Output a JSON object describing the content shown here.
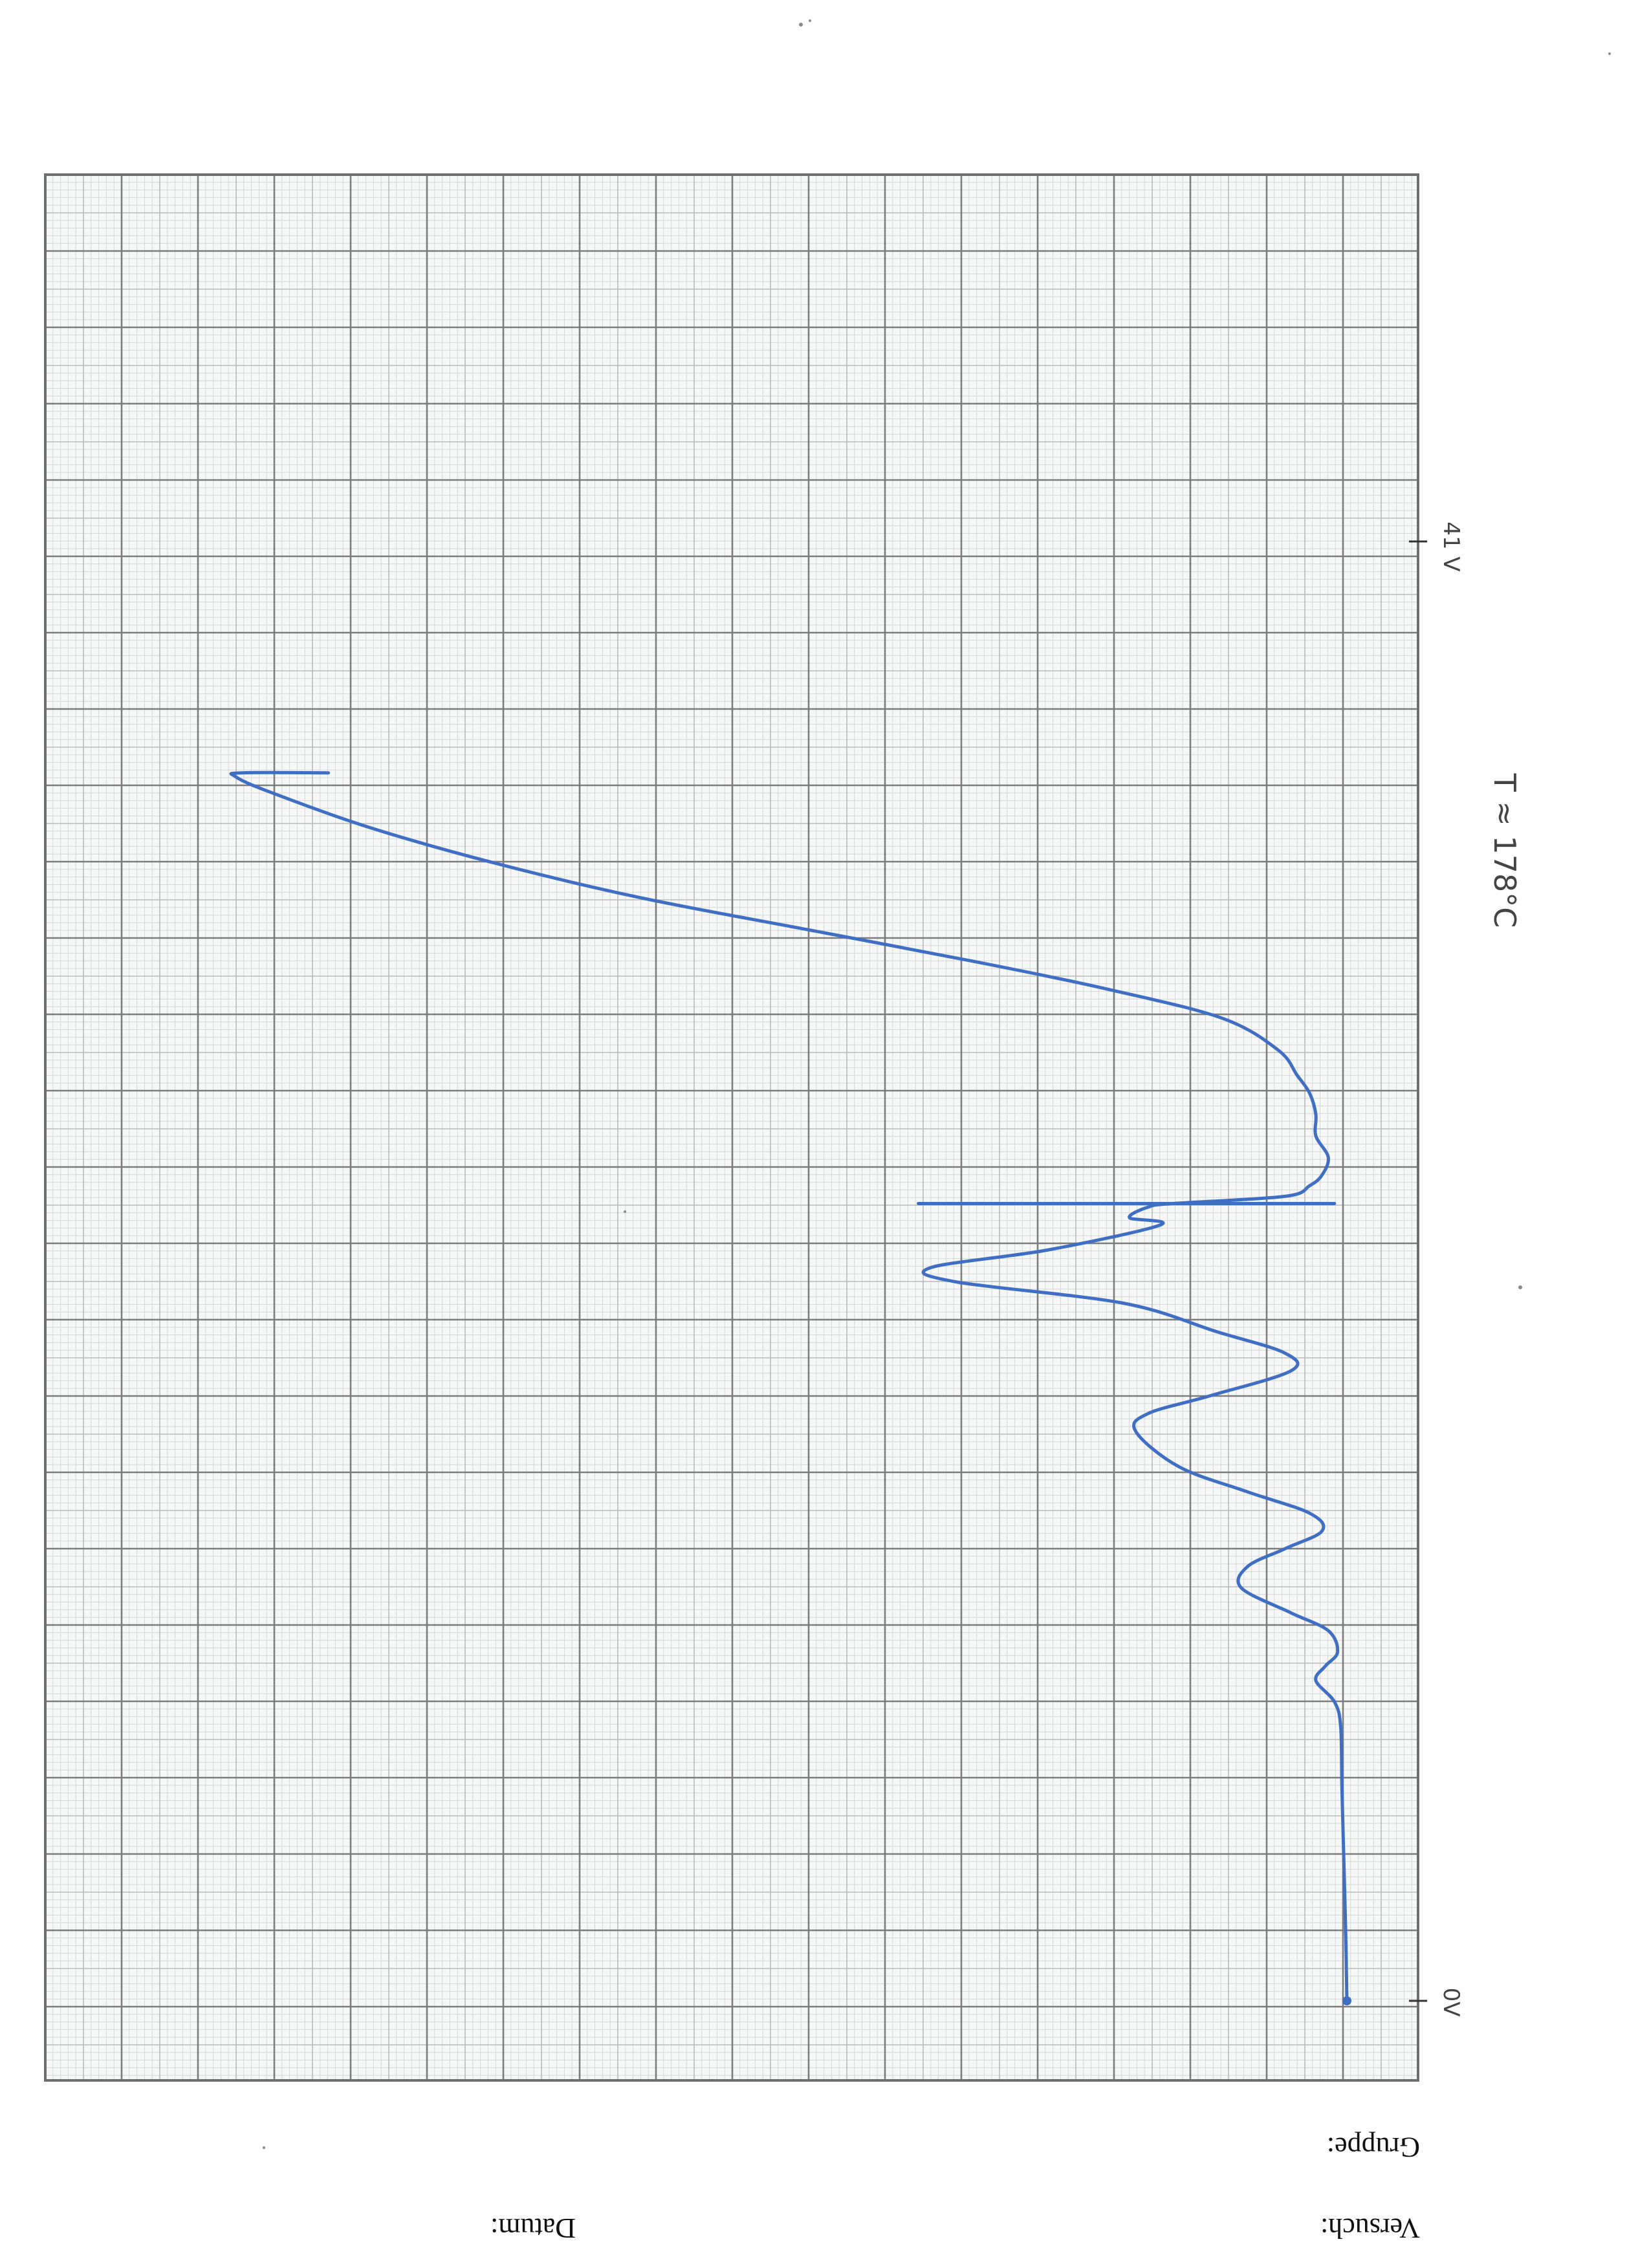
{
  "form": {
    "versuch_label": "Versuch:",
    "gruppe_label": "Gruppe:",
    "datum_label": "Datum:"
  },
  "annotations": {
    "temperature_note": "T ≈ 178°C",
    "end_voltage_label": "41 V",
    "zero_label": "0V"
  },
  "colors": {
    "ink": "#3f6fc4",
    "grid_major": "#7d7d7d",
    "grid_minor": "#b9b9b9",
    "grid_fine": "#d6d6d6",
    "paper": "#ffffff"
  },
  "chart_data": {
    "type": "line",
    "title": "",
    "xlabel": "",
    "ylabel": "",
    "x_range": [
      0,
      41
    ],
    "x_unit": "V",
    "y_range": [
      0,
      18
    ],
    "grid": true,
    "orientation": "page rotated 180°; x runs bottom-to-top, y runs right-to-left",
    "x_tick_labels": [
      "0V",
      "41 V"
    ],
    "series": [
      {
        "values": [
          [
            0.0,
            0.0
          ],
          [
            2.0,
            0.02
          ],
          [
            4.0,
            0.05
          ],
          [
            6.0,
            0.08
          ],
          [
            7.7,
            0.1
          ],
          [
            8.4,
            0.2
          ],
          [
            9.0,
            0.5
          ],
          [
            9.4,
            0.35
          ],
          [
            9.8,
            0.15
          ],
          [
            10.4,
            0.3
          ],
          [
            10.9,
            0.9
          ],
          [
            11.6,
            1.7
          ],
          [
            12.2,
            1.6
          ],
          [
            12.7,
            1.0
          ],
          [
            13.2,
            0.4
          ],
          [
            13.7,
            0.6
          ],
          [
            14.3,
            1.6
          ],
          [
            15.0,
            2.7
          ],
          [
            16.0,
            3.4
          ],
          [
            16.5,
            3.2
          ],
          [
            17.0,
            2.2
          ],
          [
            17.7,
            0.9
          ],
          [
            18.2,
            1.0
          ],
          [
            18.8,
            2.1
          ],
          [
            19.6,
            3.6
          ],
          [
            20.2,
            6.3
          ],
          [
            20.6,
            6.7
          ],
          [
            21.1,
            4.8
          ],
          [
            21.8,
            3.0
          ],
          [
            22.0,
            3.5
          ],
          [
            22.3,
            3.2
          ],
          [
            22.4,
            2.8
          ],
          [
            22.6,
            1.0
          ],
          [
            22.9,
            0.6
          ],
          [
            23.2,
            0.4
          ],
          [
            23.7,
            0.3
          ],
          [
            24.3,
            0.5
          ],
          [
            24.9,
            0.5
          ],
          [
            25.5,
            0.6
          ],
          [
            26.0,
            0.8
          ],
          [
            26.7,
            1.1
          ],
          [
            27.6,
            2.0
          ],
          [
            28.4,
            3.8
          ],
          [
            29.2,
            6.0
          ],
          [
            30.1,
            8.7
          ],
          [
            31.0,
            11.4
          ],
          [
            32.0,
            13.8
          ],
          [
            33.0,
            15.8
          ],
          [
            34.0,
            17.4
          ],
          [
            34.4,
            17.9
          ],
          [
            34.5,
            17.8
          ],
          [
            34.5,
            16.4
          ]
        ]
      }
    ],
    "markers": [
      {
        "type": "vertical_spike",
        "x": 22.4,
        "y": 6.9
      }
    ]
  }
}
